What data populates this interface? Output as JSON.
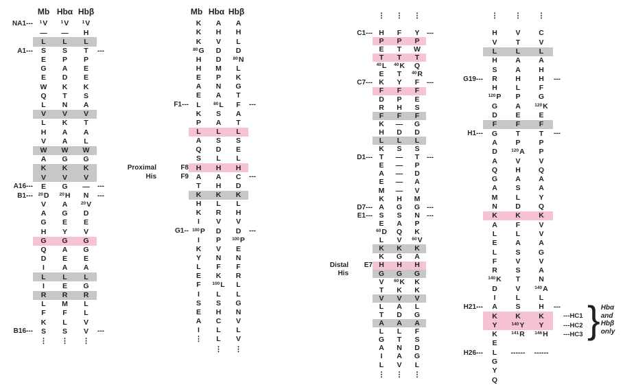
{
  "figure": {
    "colors": {
      "pink": "#f5c3d1",
      "gray": "#c6c7c9",
      "text": "#231f20",
      "bg": "#ffffff"
    },
    "dash": "---",
    "rl_dash": "---",
    "brace": "}",
    "note_lines": [
      "Hbα",
      "and",
      "Hbβ",
      "only"
    ],
    "header": {
      "mb": "Mb",
      "hba": "Hbα",
      "hbb": "Hbβ"
    },
    "groups": [
      {
        "header": true,
        "rows": [
          {
            "l": "NA1---",
            "m": "V",
            "a": "V",
            "b": "V",
            "mn": "1",
            "an": "1",
            "bn": "1"
          },
          {
            "m": "—",
            "a": "—",
            "b": "H"
          },
          {
            "m": "L",
            "a": "L",
            "b": "L",
            "h": "g"
          },
          {
            "l": "A1---",
            "m": "S",
            "a": "S",
            "b": "T",
            "t": 1
          },
          {
            "m": "E",
            "a": "P",
            "b": "P"
          },
          {
            "m": "G",
            "a": "A",
            "b": "E"
          },
          {
            "m": "E",
            "a": "D",
            "b": "E"
          },
          {
            "m": "W",
            "a": "K",
            "b": "K"
          },
          {
            "m": "Q",
            "a": "T",
            "b": "S"
          },
          {
            "m": "L",
            "a": "N",
            "b": "A"
          },
          {
            "m": "V",
            "a": "V",
            "b": "V",
            "h": "g"
          },
          {
            "m": "L",
            "a": "K",
            "b": "T"
          },
          {
            "m": "H",
            "a": "A",
            "b": "A"
          },
          {
            "m": "V",
            "a": "A",
            "b": "L"
          },
          {
            "m": "W",
            "a": "W",
            "b": "W",
            "h": "g"
          },
          {
            "m": "A",
            "a": "G",
            "b": "G"
          },
          {
            "m": "K",
            "a": "K",
            "b": "K",
            "h": "g"
          },
          {
            "m": "V",
            "a": "V",
            "b": "V",
            "h": "g"
          },
          {
            "l": "A16---",
            "m": "E",
            "a": "G",
            "b": "—",
            "t": 1
          },
          {
            "l": "B1---",
            "m": "D",
            "a": "H",
            "b": "N",
            "mn": "20",
            "an": "20",
            "t": 1
          },
          {
            "m": "V",
            "a": "A",
            "b": "V",
            "bn": "20"
          },
          {
            "m": "A",
            "a": "G",
            "b": "D"
          },
          {
            "m": "G",
            "a": "E",
            "b": "E"
          },
          {
            "m": "H",
            "a": "Y",
            "b": "V"
          },
          {
            "m": "G",
            "a": "G",
            "b": "G",
            "h": "p"
          },
          {
            "m": "Q",
            "a": "A",
            "b": "G"
          },
          {
            "m": "D",
            "a": "E",
            "b": "E"
          },
          {
            "m": "I",
            "a": "A",
            "b": "A"
          },
          {
            "m": "L",
            "a": "L",
            "b": "L",
            "h": "g"
          },
          {
            "m": "I",
            "a": "E",
            "b": "G"
          },
          {
            "m": "R",
            "a": "R",
            "b": "R",
            "h": "g"
          },
          {
            "m": "L",
            "a": "M",
            "b": "L"
          },
          {
            "m": "F",
            "a": "F",
            "b": "L"
          },
          {
            "m": "K",
            "a": "L",
            "b": "V"
          },
          {
            "l": "B16---",
            "m": "S",
            "a": "S",
            "b": "V",
            "t": 1
          },
          {
            "m": "⋮",
            "a": "⋮",
            "b": "⋮"
          }
        ]
      },
      {
        "header": true,
        "rows": [
          {
            "m": "K",
            "a": "A",
            "b": "A"
          },
          {
            "m": "K",
            "a": "H",
            "b": "H"
          },
          {
            "m": "K",
            "a": "V",
            "b": "L"
          },
          {
            "m": "G",
            "a": "D",
            "b": "D",
            "mn": "80"
          },
          {
            "m": "H",
            "a": "D",
            "b": "N",
            "bn": "80"
          },
          {
            "m": "H",
            "a": "M",
            "b": "L"
          },
          {
            "m": "E",
            "a": "P",
            "b": "K"
          },
          {
            "m": "A",
            "a": "N",
            "b": "G"
          },
          {
            "m": "E",
            "a": "A",
            "b": "T"
          },
          {
            "l": "F1---",
            "m": "L",
            "a": "L",
            "b": "F",
            "an": "80",
            "t": 1
          },
          {
            "m": "K",
            "a": "S",
            "b": "A"
          },
          {
            "m": "P",
            "a": "A",
            "b": "T"
          },
          {
            "m": "L",
            "a": "L",
            "b": "L",
            "h": "p"
          },
          {
            "m": "A",
            "a": "S",
            "b": "S"
          },
          {
            "m": "Q",
            "a": "D",
            "b": "E"
          },
          {
            "m": "S",
            "a": "L",
            "b": "L"
          },
          {
            "l": "F8",
            "m": "H",
            "a": "H",
            "b": "H",
            "h": "p",
            "ann": "Proximal"
          },
          {
            "l": "F9",
            "m": "A",
            "a": "A",
            "b": "C",
            "ann": "His",
            "t": 1
          },
          {
            "m": "T",
            "a": "H",
            "b": "D"
          },
          {
            "m": "K",
            "a": "K",
            "b": "K",
            "h": "g"
          },
          {
            "m": "H",
            "a": "L",
            "b": "L"
          },
          {
            "m": "K",
            "a": "R",
            "b": "H"
          },
          {
            "m": "I",
            "a": "V",
            "b": "V"
          },
          {
            "l": "G1--",
            "m": "P",
            "a": "D",
            "b": "D",
            "mn": "100",
            "t": 1
          },
          {
            "m": "I",
            "a": "P",
            "b": "P",
            "bn": "100"
          },
          {
            "m": "K",
            "a": "V",
            "b": "E"
          },
          {
            "m": "Y",
            "a": "N",
            "b": "N"
          },
          {
            "m": "L",
            "a": "F",
            "b": "F"
          },
          {
            "m": "E",
            "a": "K",
            "b": "R"
          },
          {
            "m": "F",
            "a": "L",
            "b": "L",
            "an": "100"
          },
          {
            "m": "I",
            "a": "L",
            "b": "L"
          },
          {
            "m": "S",
            "a": "S",
            "b": "G"
          },
          {
            "m": "E",
            "a": "H",
            "b": "N"
          },
          {
            "m": "A",
            "a": "C",
            "b": "V"
          },
          {
            "m": "I",
            "a": "L",
            "b": "L"
          },
          {
            "m": "⋮",
            "a": "L",
            "b": "V"
          },
          {
            "m": "",
            "a": "⋮",
            "b": "⋮"
          }
        ]
      },
      {
        "header": false,
        "rows": [
          {
            "m": "⋮",
            "a": "⋮",
            "b": "⋮"
          },
          {
            "l": "C1---",
            "m": "H",
            "a": "F",
            "b": "Y",
            "t": 1
          },
          {
            "m": "P",
            "a": "P",
            "b": "P",
            "h": "p"
          },
          {
            "m": "E",
            "a": "T",
            "b": "W"
          },
          {
            "m": "T",
            "a": "T",
            "b": "T",
            "h": "p"
          },
          {
            "m": "L",
            "a": "K",
            "b": "Q",
            "mn": "40",
            "an": "40"
          },
          {
            "m": "E",
            "a": "T",
            "b": "R",
            "bn": "40"
          },
          {
            "l": "C7---",
            "m": "K",
            "a": "Y",
            "b": "F",
            "t": 1
          },
          {
            "m": "F",
            "a": "F",
            "b": "F",
            "h": "p"
          },
          {
            "m": "D",
            "a": "P",
            "b": "E"
          },
          {
            "m": "R",
            "a": "H",
            "b": "S"
          },
          {
            "m": "F",
            "a": "F",
            "b": "F",
            "h": "g"
          },
          {
            "m": "K",
            "a": "—",
            "b": "G"
          },
          {
            "m": "H",
            "a": "D",
            "b": "D"
          },
          {
            "m": "L",
            "a": "L",
            "b": "L",
            "h": "g"
          },
          {
            "m": "K",
            "a": "S",
            "b": "S"
          },
          {
            "l": "D1---",
            "m": "T",
            "a": "—",
            "b": "T",
            "t": 1
          },
          {
            "m": "E",
            "a": "—",
            "b": "P"
          },
          {
            "m": "A",
            "a": "—",
            "b": "D"
          },
          {
            "m": "E",
            "a": "—",
            "b": "A"
          },
          {
            "m": "M",
            "a": "—",
            "b": "V"
          },
          {
            "m": "K",
            "a": "H",
            "b": "M"
          },
          {
            "l": "D7---",
            "m": "A",
            "a": "G",
            "b": "G",
            "t": 1
          },
          {
            "l": "E1---",
            "m": "S",
            "a": "S",
            "b": "N",
            "t": 1
          },
          {
            "m": "E",
            "a": "A",
            "b": "P"
          },
          {
            "m": "D",
            "a": "Q",
            "b": "K",
            "mn": "60"
          },
          {
            "m": "L",
            "a": "V",
            "b": "V",
            "bn": "60"
          },
          {
            "m": "K",
            "a": "K",
            "b": "K",
            "h": "g"
          },
          {
            "m": "K",
            "a": "G",
            "b": "A"
          },
          {
            "l": "E7",
            "m": "H",
            "a": "H",
            "b": "H",
            "h": "p",
            "ann": "Distal"
          },
          {
            "m": "G",
            "a": "G",
            "b": "G",
            "h": "g",
            "ann": "His"
          },
          {
            "m": "V",
            "a": "K",
            "b": "K",
            "an": "60"
          },
          {
            "m": "T",
            "a": "K",
            "b": "K"
          },
          {
            "m": "V",
            "a": "V",
            "b": "V",
            "h": "g"
          },
          {
            "m": "L",
            "a": "A",
            "b": "L"
          },
          {
            "m": "T",
            "a": "D",
            "b": "G"
          },
          {
            "m": "A",
            "a": "A",
            "b": "A",
            "h": "g"
          },
          {
            "m": "L",
            "a": "L",
            "b": "F"
          },
          {
            "m": "G",
            "a": "T",
            "b": "S"
          },
          {
            "m": "A",
            "a": "N",
            "b": "D"
          },
          {
            "m": "I",
            "a": "A",
            "b": "G"
          },
          {
            "m": "L",
            "a": "V",
            "b": "L"
          },
          {
            "m": "⋮",
            "a": "⋮",
            "b": "⋮"
          }
        ]
      },
      {
        "header": false,
        "rows": [
          {
            "m": "⋮",
            "a": "⋮",
            "b": "⋮"
          },
          {
            "m": "H",
            "a": "V",
            "b": "C"
          },
          {
            "m": "V",
            "a": "T",
            "b": "V"
          },
          {
            "m": "L",
            "a": "L",
            "b": "L",
            "h": "g"
          },
          {
            "m": "H",
            "a": "A",
            "b": "A"
          },
          {
            "m": "S",
            "a": "A",
            "b": "H"
          },
          {
            "l": "G19---",
            "m": "R",
            "a": "H",
            "b": "H",
            "t": 1
          },
          {
            "m": "H",
            "a": "L",
            "b": "F"
          },
          {
            "m": "P",
            "a": "P",
            "b": "G",
            "mn": "120"
          },
          {
            "m": "G",
            "a": "A",
            "b": "K",
            "bn": "120"
          },
          {
            "m": "D",
            "a": "E",
            "b": "E"
          },
          {
            "m": "F",
            "a": "F",
            "b": "F",
            "h": "g"
          },
          {
            "l": "H1---",
            "m": "G",
            "a": "T",
            "b": "T",
            "t": 1
          },
          {
            "m": "A",
            "a": "P",
            "b": "P"
          },
          {
            "m": "D",
            "a": "A",
            "b": "P",
            "an": "120"
          },
          {
            "m": "A",
            "a": "V",
            "b": "V"
          },
          {
            "m": "Q",
            "a": "H",
            "b": "Q"
          },
          {
            "m": "G",
            "a": "A",
            "b": "A"
          },
          {
            "m": "A",
            "a": "S",
            "b": "A"
          },
          {
            "m": "M",
            "a": "L",
            "b": "Y"
          },
          {
            "m": "N",
            "a": "D",
            "b": "Q"
          },
          {
            "m": "K",
            "a": "K",
            "b": "K",
            "h": "p"
          },
          {
            "m": "A",
            "a": "F",
            "b": "V"
          },
          {
            "m": "L",
            "a": "L",
            "b": "V"
          },
          {
            "m": "E",
            "a": "A",
            "b": "A"
          },
          {
            "m": "L",
            "a": "S",
            "b": "G"
          },
          {
            "m": "F",
            "a": "V",
            "b": "V"
          },
          {
            "m": "R",
            "a": "S",
            "b": "A"
          },
          {
            "m": "K",
            "a": "T",
            "b": "N",
            "mn": "140"
          },
          {
            "m": "D",
            "a": "V",
            "b": "A",
            "bn": "140"
          },
          {
            "m": "I",
            "a": "L",
            "b": "L"
          },
          {
            "l": "H21---",
            "m": "A",
            "a": "S",
            "b": "H",
            "t": 1
          },
          {
            "m": "K",
            "a": "K",
            "b": "K",
            "h": "p",
            "rl": "HC1"
          },
          {
            "m": "Y",
            "a": "Y",
            "b": "Y",
            "h": "p",
            "an": "140",
            "rl": "HC2"
          },
          {
            "m": "K",
            "a": "R",
            "b": "H",
            "an": "141",
            "bn": "146",
            "rl": "HC3"
          },
          {
            "m": "E",
            "a": "",
            "b": ""
          },
          {
            "l": "H26---",
            "m": "L",
            "a": "------",
            "b": "------"
          },
          {
            "m": "G",
            "a": "",
            "b": ""
          },
          {
            "m": "Y",
            "a": "",
            "b": ""
          },
          {
            "m": "Q",
            "a": "",
            "b": ""
          }
        ]
      }
    ]
  }
}
